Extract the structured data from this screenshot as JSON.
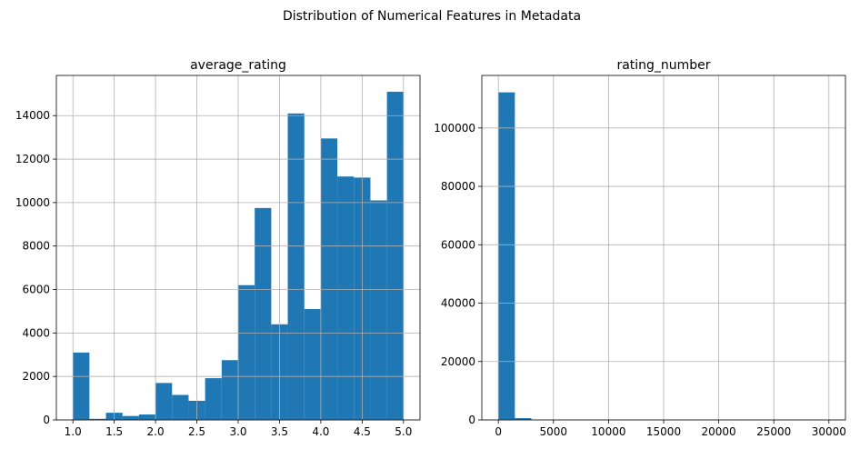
{
  "figure": {
    "suptitle": "Distribution of Numerical Features in Metadata"
  },
  "chart_data": [
    {
      "type": "bar",
      "title": "average_rating",
      "xlabel": "",
      "ylabel": "",
      "xlim": [
        0.8,
        5.2
      ],
      "ylim": [
        0,
        15850
      ],
      "xticks": [
        1.0,
        1.5,
        2.0,
        2.5,
        3.0,
        3.5,
        4.0,
        4.5,
        5.0
      ],
      "xtick_labels": [
        "1.0",
        "1.5",
        "2.0",
        "2.5",
        "3.0",
        "3.5",
        "4.0",
        "4.5",
        "5.0"
      ],
      "yticks": [
        0,
        2000,
        4000,
        6000,
        8000,
        10000,
        12000,
        14000
      ],
      "ytick_labels": [
        "0",
        "2000",
        "4000",
        "6000",
        "8000",
        "10000",
        "12000",
        "14000"
      ],
      "grid": true,
      "color": "#1f77b4",
      "bin_edges": [
        1.0,
        1.2,
        1.4,
        1.6,
        1.8,
        2.0,
        2.2,
        2.4,
        2.6,
        2.8,
        3.0,
        3.2,
        3.4,
        3.6,
        3.8,
        4.0,
        4.2,
        4.4,
        4.6,
        4.8,
        5.0
      ],
      "values": [
        3100,
        50,
        330,
        180,
        250,
        1700,
        1150,
        880,
        1920,
        2750,
        6200,
        9750,
        4400,
        14100,
        5100,
        12950,
        11200,
        11150,
        10100,
        15100
      ]
    },
    {
      "type": "bar",
      "title": "rating_number",
      "xlabel": "",
      "ylabel": "",
      "xlim": [
        -1500,
        31500
      ],
      "ylim": [
        0,
        118000
      ],
      "xticks": [
        0,
        5000,
        10000,
        15000,
        20000,
        25000,
        30000
      ],
      "xtick_labels": [
        "0",
        "5000",
        "10000",
        "15000",
        "20000",
        "25000",
        "30000"
      ],
      "yticks": [
        0,
        20000,
        40000,
        60000,
        80000,
        100000
      ],
      "ytick_labels": [
        "0",
        "20000",
        "40000",
        "60000",
        "80000",
        "100000"
      ],
      "grid": true,
      "color": "#1f77b4",
      "bin_edges": [
        0,
        1500,
        3000,
        4500,
        6000,
        7500,
        9000,
        10500,
        12000,
        13500,
        15000,
        16500,
        18000,
        19500,
        21000,
        22500,
        24000,
        25500,
        27000,
        28500,
        30000
      ],
      "values": [
        112200,
        600,
        60,
        15,
        5,
        2,
        1,
        1,
        1,
        0,
        0,
        0,
        0,
        0,
        0,
        0,
        0,
        0,
        0,
        1
      ]
    }
  ]
}
